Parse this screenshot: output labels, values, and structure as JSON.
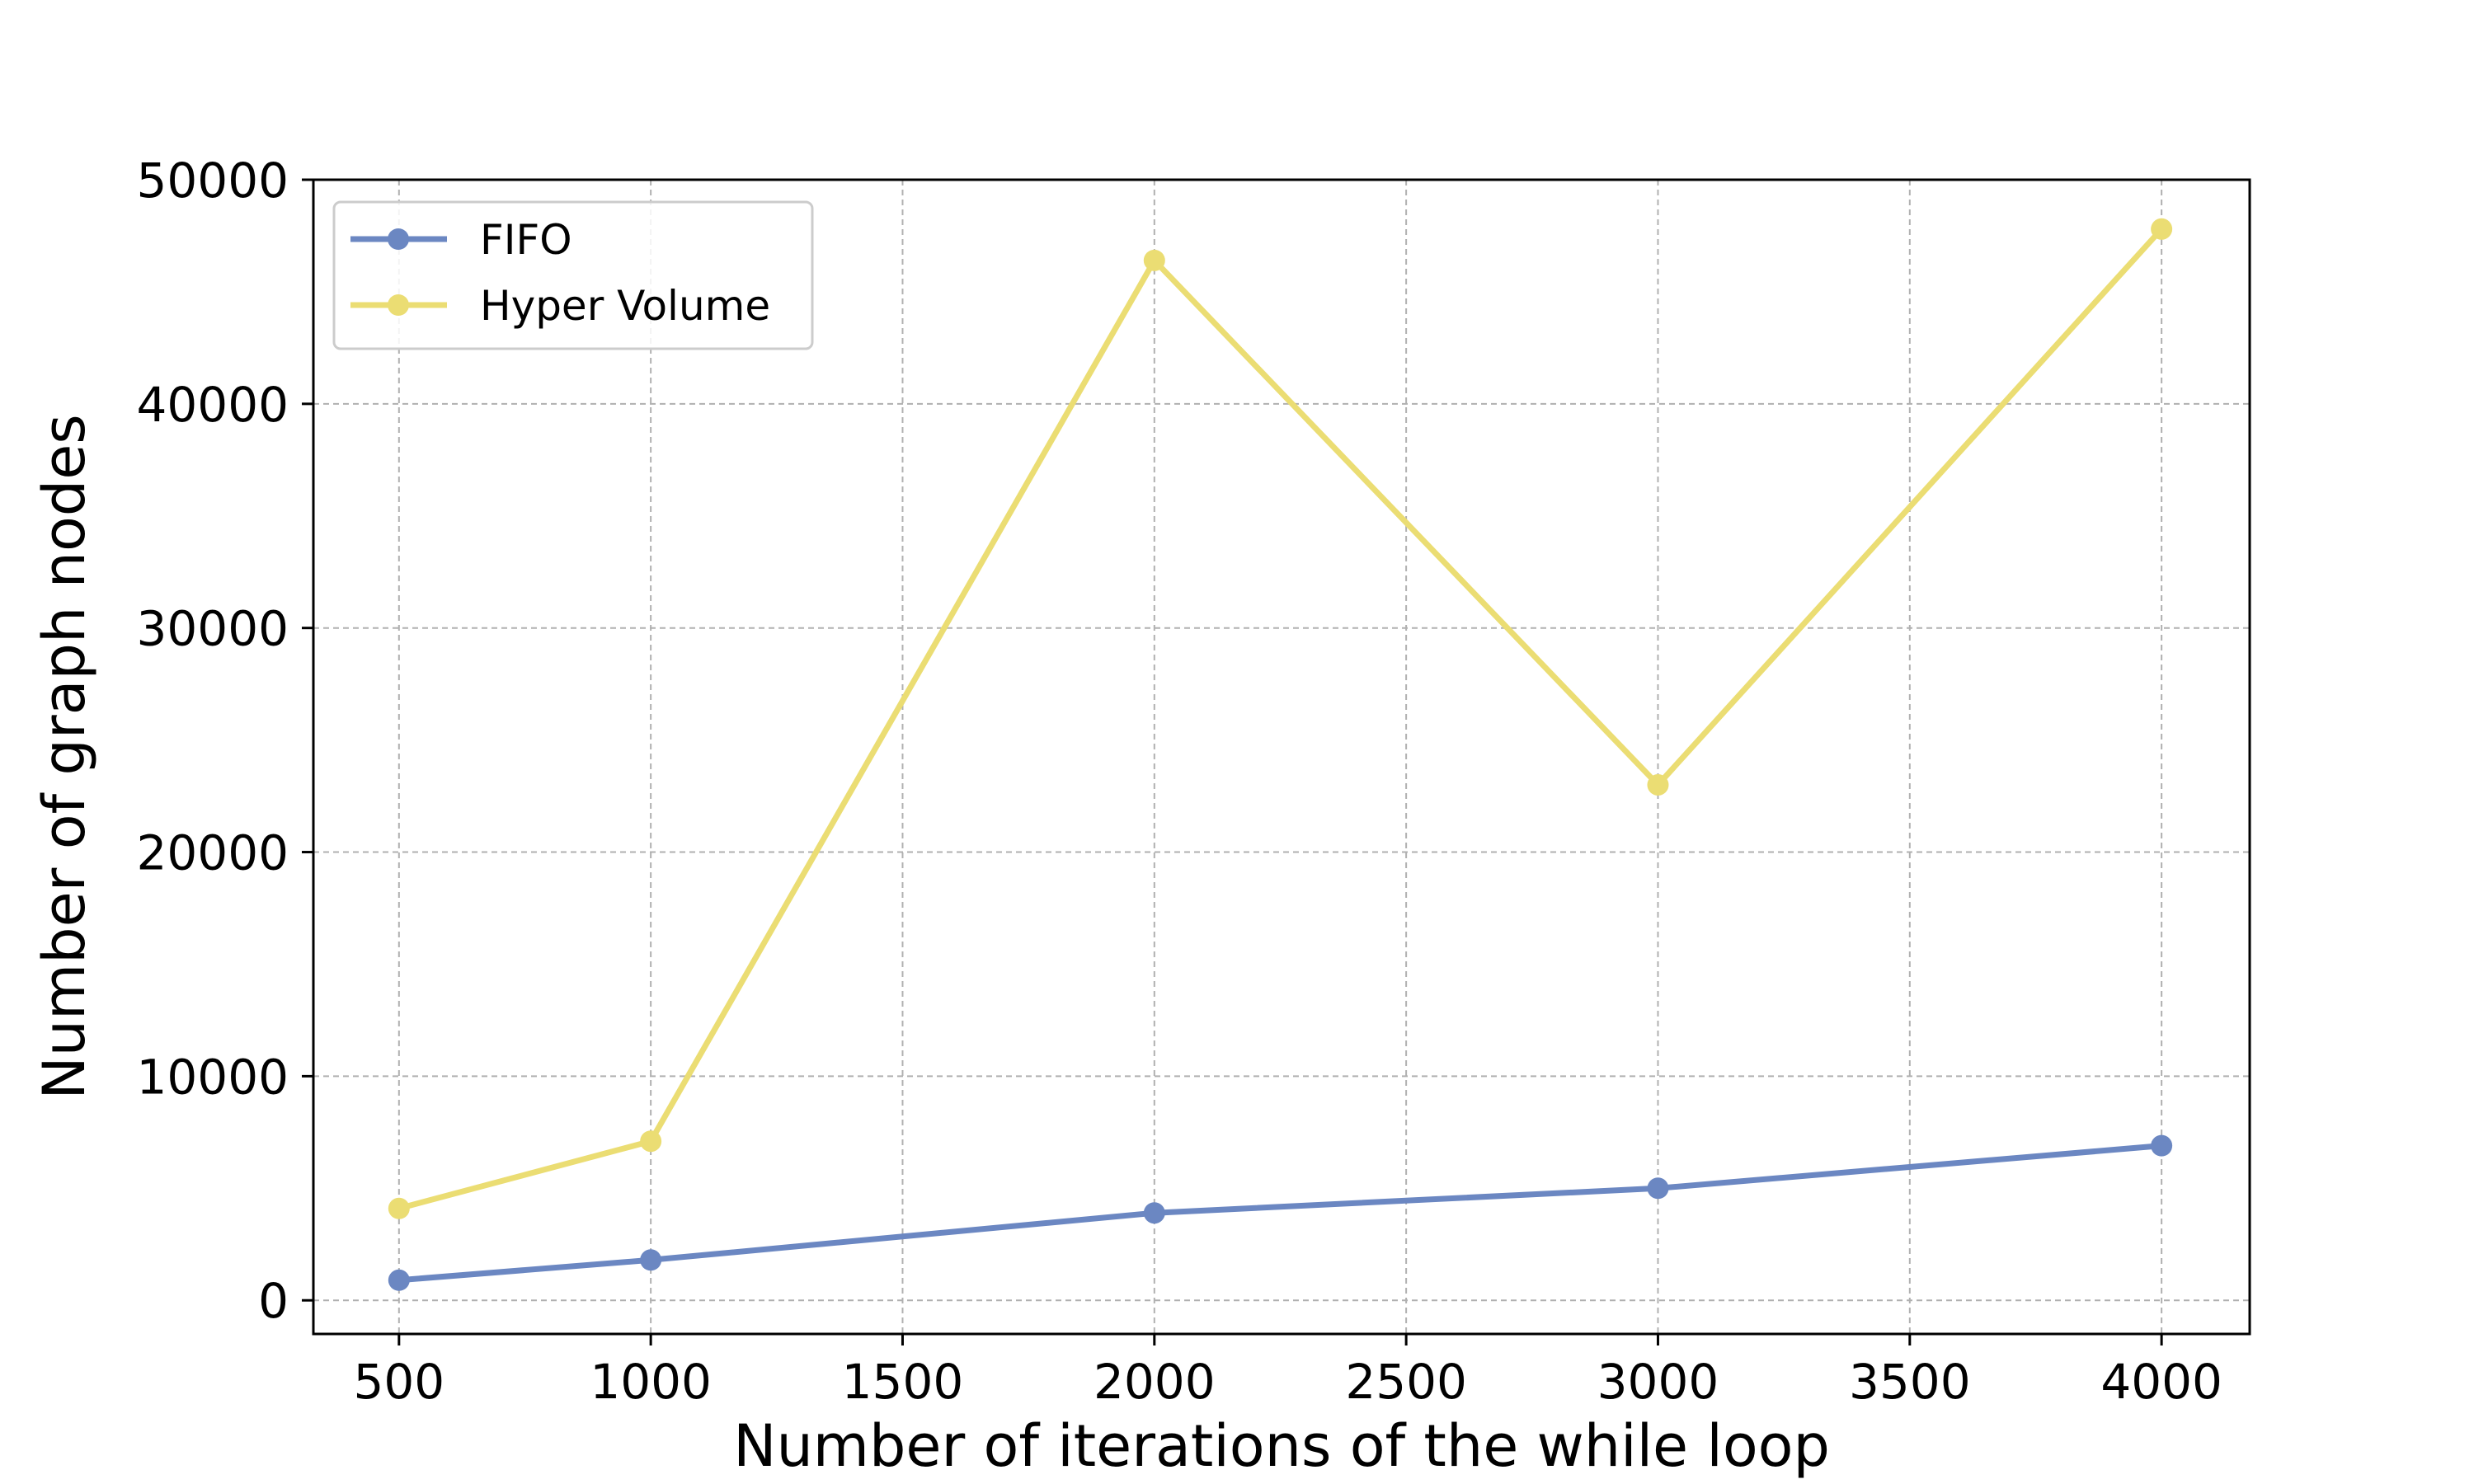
{
  "chart_data": {
    "type": "line",
    "title": "",
    "xlabel": "Number of iterations of the while loop",
    "ylabel": "Number of graph nodes",
    "x": [
      500,
      1000,
      2000,
      3000,
      4000
    ],
    "xlim": [
      330,
      4175
    ],
    "ylim": [
      -1500,
      50000
    ],
    "xticks": [
      500,
      1000,
      1500,
      2000,
      2500,
      3000,
      3500,
      4000
    ],
    "yticks": [
      0,
      10000,
      20000,
      30000,
      40000,
      50000
    ],
    "grid": true,
    "legend_position": "top-left",
    "series": [
      {
        "name": "FIFO",
        "color": "#6b87c2",
        "values": [
          900,
          1800,
          3900,
          5000,
          6900
        ]
      },
      {
        "name": "Hyper Volume",
        "color": "#ebdd73",
        "values": [
          4100,
          7100,
          46400,
          23000,
          47800
        ]
      }
    ]
  }
}
